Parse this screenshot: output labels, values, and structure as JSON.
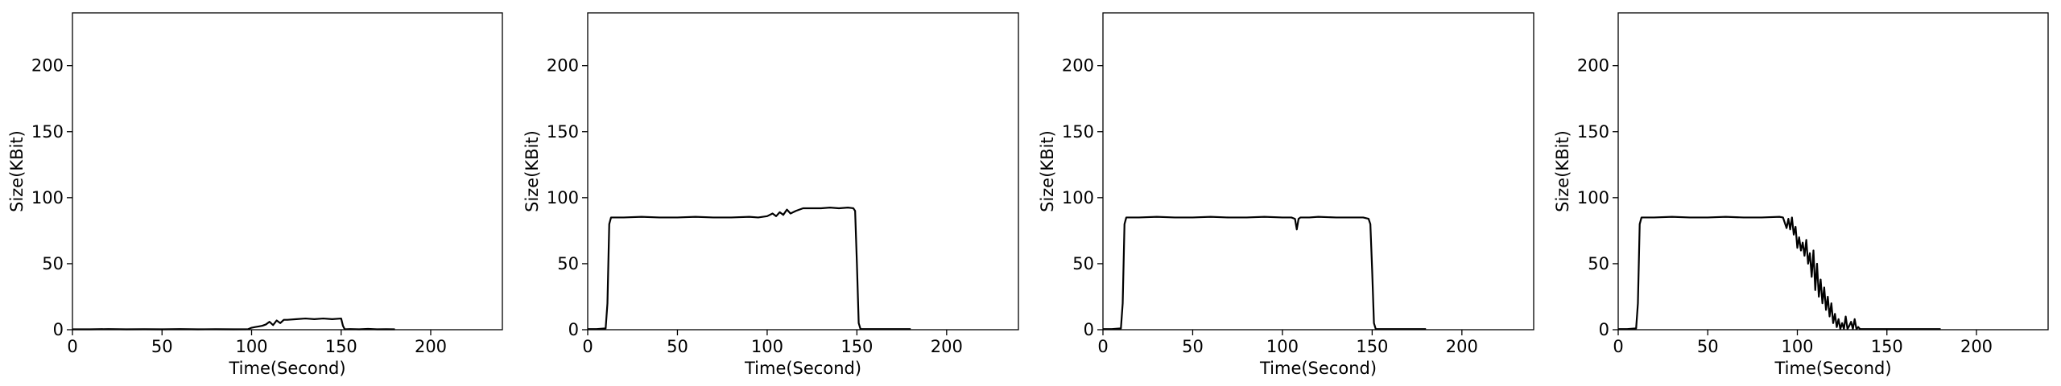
{
  "chart_data": [
    {
      "type": "line",
      "xlabel": "Time(Second)",
      "ylabel": "Size(KBit)",
      "xlim": [
        0,
        240
      ],
      "ylim": [
        0,
        240
      ],
      "xticks": [
        0,
        50,
        100,
        150,
        200
      ],
      "yticks": [
        0,
        50,
        100,
        150,
        200
      ],
      "grid": false,
      "line_color": "#000000",
      "series": [
        {
          "x": [
            0,
            10,
            20,
            30,
            40,
            50,
            60,
            70,
            80,
            90,
            98,
            100,
            102,
            104,
            106,
            108,
            110,
            112,
            114,
            116,
            118,
            120,
            125,
            130,
            135,
            140,
            145,
            150,
            151,
            152,
            155,
            160,
            165,
            170,
            175,
            180
          ],
          "values": [
            0.3,
            0.3,
            0.5,
            0.3,
            0.4,
            0.3,
            0.5,
            0.3,
            0.4,
            0.3,
            0.4,
            1.5,
            2,
            2.5,
            3,
            4,
            6,
            3.5,
            7,
            5,
            7.5,
            7.5,
            8,
            8.5,
            8,
            8.5,
            8,
            8.5,
            3,
            0.3,
            0.5,
            0.3,
            0.6,
            0.3,
            0.4,
            0.3
          ]
        }
      ]
    },
    {
      "type": "line",
      "xlabel": "Time(Second)",
      "ylabel": "Size(KBit)",
      "xlim": [
        0,
        240
      ],
      "ylim": [
        0,
        240
      ],
      "xticks": [
        0,
        50,
        100,
        150,
        200
      ],
      "yticks": [
        0,
        50,
        100,
        150,
        200
      ],
      "grid": false,
      "line_color": "#000000",
      "series": [
        {
          "x": [
            0,
            5,
            10,
            11,
            12,
            13,
            20,
            30,
            40,
            50,
            60,
            70,
            80,
            90,
            95,
            100,
            103,
            105,
            107,
            109,
            111,
            113,
            116,
            120,
            125,
            130,
            135,
            140,
            145,
            148,
            149,
            150,
            151,
            152,
            155,
            160,
            165,
            170,
            175,
            180
          ],
          "values": [
            0.5,
            0.5,
            1,
            20,
            80,
            85,
            85,
            85.5,
            85,
            85,
            85.5,
            85,
            85,
            85.5,
            85,
            86,
            88,
            86,
            89,
            87,
            91,
            88,
            90,
            92,
            92,
            92,
            92.5,
            92,
            92.5,
            92,
            90,
            50,
            5,
            0.5,
            0.5,
            0.5,
            0.5,
            0.5,
            0.5,
            0.5
          ]
        }
      ]
    },
    {
      "type": "line",
      "xlabel": "Time(Second)",
      "ylabel": "Size(KBit)",
      "xlim": [
        0,
        240
      ],
      "ylim": [
        0,
        240
      ],
      "xticks": [
        0,
        50,
        100,
        150,
        200
      ],
      "yticks": [
        0,
        50,
        100,
        150,
        200
      ],
      "grid": false,
      "line_color": "#000000",
      "series": [
        {
          "x": [
            0,
            5,
            10,
            11,
            12,
            13,
            20,
            30,
            40,
            50,
            60,
            70,
            80,
            90,
            100,
            105,
            107,
            108,
            109,
            110,
            115,
            120,
            130,
            140,
            145,
            148,
            149,
            150,
            151,
            152,
            155,
            160,
            165,
            170,
            175,
            180
          ],
          "values": [
            0.5,
            0.5,
            1,
            20,
            80,
            85,
            85,
            85.5,
            85,
            85,
            85.5,
            85,
            85,
            85.5,
            85,
            85,
            84,
            76,
            84,
            85,
            85,
            85.5,
            85,
            85,
            85,
            84,
            80,
            45,
            5,
            0.5,
            0.5,
            0.5,
            0.5,
            0.5,
            0.5,
            0.5
          ]
        }
      ]
    },
    {
      "type": "line",
      "xlabel": "Time(Second)",
      "ylabel": "Size(KBit)",
      "xlim": [
        0,
        240
      ],
      "ylim": [
        0,
        240
      ],
      "xticks": [
        0,
        50,
        100,
        150,
        200
      ],
      "yticks": [
        0,
        50,
        100,
        150,
        200
      ],
      "grid": false,
      "line_color": "#000000",
      "series": [
        {
          "x": [
            0,
            5,
            10,
            11,
            12,
            13,
            20,
            30,
            40,
            50,
            60,
            70,
            80,
            90,
            92,
            94,
            95,
            96,
            97,
            98,
            99,
            100,
            101,
            102,
            103,
            104,
            105,
            106,
            107,
            108,
            109,
            110,
            111,
            112,
            113,
            114,
            115,
            116,
            117,
            118,
            119,
            120,
            121,
            122,
            123,
            124,
            125,
            126,
            127,
            128,
            129,
            130,
            131,
            132,
            133,
            134,
            135,
            140,
            150,
            160,
            170,
            180
          ],
          "values": [
            0.5,
            0.5,
            1,
            20,
            80,
            85,
            85,
            85.5,
            85,
            85,
            85.5,
            85,
            85,
            85.5,
            85,
            77,
            84,
            76,
            85,
            72,
            78,
            62,
            70,
            60,
            66,
            56,
            68,
            50,
            58,
            40,
            60,
            30,
            50,
            25,
            38,
            20,
            32,
            15,
            25,
            10,
            20,
            5,
            12,
            2,
            8,
            0.5,
            5,
            0.5,
            10,
            0.5,
            3,
            6,
            0.5,
            8,
            0.5,
            2,
            0.5,
            0.5,
            0.5,
            0.5,
            0.5,
            0.5
          ]
        }
      ]
    }
  ]
}
